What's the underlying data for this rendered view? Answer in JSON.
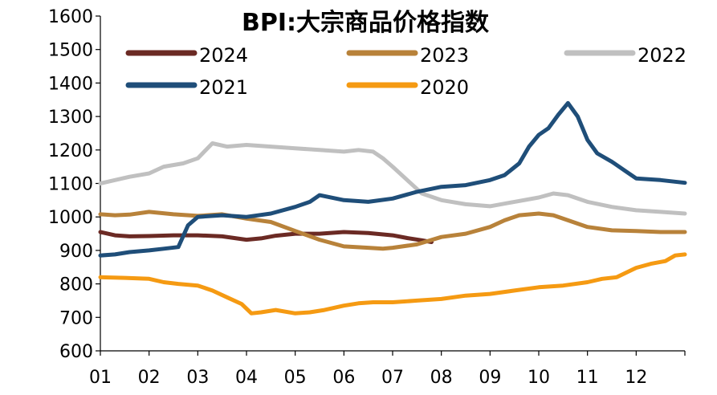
{
  "chart_data": {
    "type": "line",
    "title": "BPI:大宗商品价格指数",
    "xlabel": "",
    "ylabel": "",
    "ylim": [
      600,
      1600
    ],
    "yticks": [
      600,
      700,
      800,
      900,
      1000,
      1100,
      1200,
      1300,
      1400,
      1500,
      1600
    ],
    "xlim": [
      1,
      13
    ],
    "categories": [
      "01",
      "02",
      "03",
      "04",
      "05",
      "06",
      "07",
      "08",
      "09",
      "10",
      "11",
      "12"
    ],
    "grid": false,
    "legend_position": "top",
    "series": [
      {
        "name": "2024",
        "color": "#6b2a24",
        "x": [
          1.0,
          1.3,
          1.6,
          2.0,
          2.5,
          3.0,
          3.5,
          4.0,
          4.3,
          4.6,
          5.0,
          5.5,
          6.0,
          6.5,
          7.0,
          7.3,
          7.6,
          7.8
        ],
        "y": [
          955,
          945,
          942,
          943,
          945,
          945,
          942,
          932,
          936,
          944,
          950,
          950,
          955,
          952,
          945,
          937,
          930,
          925
        ]
      },
      {
        "name": "2023",
        "color": "#b8823a",
        "x": [
          1.0,
          1.3,
          1.6,
          2.0,
          2.5,
          3.0,
          3.5,
          4.0,
          4.5,
          5.0,
          5.5,
          6.0,
          6.5,
          6.8,
          7.0,
          7.5,
          8.0,
          8.5,
          9.0,
          9.3,
          9.6,
          10.0,
          10.3,
          10.6,
          11.0,
          11.5,
          12.0,
          12.5,
          13.0
        ],
        "y": [
          1008,
          1005,
          1007,
          1015,
          1008,
          1003,
          1008,
          995,
          985,
          958,
          932,
          912,
          908,
          905,
          908,
          918,
          940,
          950,
          970,
          990,
          1005,
          1010,
          1005,
          990,
          970,
          960,
          958,
          955,
          955
        ]
      },
      {
        "name": "2022",
        "color": "#c0c0c0",
        "x": [
          1.0,
          1.3,
          1.6,
          2.0,
          2.3,
          2.7,
          3.0,
          3.3,
          3.6,
          4.0,
          4.5,
          5.0,
          5.5,
          6.0,
          6.3,
          6.6,
          6.8,
          7.0,
          7.3,
          7.6,
          8.0,
          8.5,
          9.0,
          9.5,
          10.0,
          10.3,
          10.6,
          11.0,
          11.5,
          12.0,
          12.5,
          13.0
        ],
        "y": [
          1100,
          1110,
          1120,
          1130,
          1150,
          1160,
          1175,
          1220,
          1210,
          1215,
          1210,
          1205,
          1200,
          1195,
          1200,
          1195,
          1175,
          1150,
          1110,
          1070,
          1050,
          1038,
          1032,
          1045,
          1058,
          1070,
          1065,
          1045,
          1030,
          1020,
          1015,
          1010
        ]
      },
      {
        "name": "2021",
        "color": "#1f4e79",
        "x": [
          1.0,
          1.3,
          1.6,
          2.0,
          2.3,
          2.6,
          2.8,
          3.0,
          3.5,
          4.0,
          4.5,
          5.0,
          5.3,
          5.5,
          6.0,
          6.5,
          7.0,
          7.5,
          8.0,
          8.5,
          9.0,
          9.3,
          9.6,
          9.8,
          10.0,
          10.2,
          10.4,
          10.6,
          10.8,
          11.0,
          11.2,
          11.5,
          11.8,
          12.0,
          12.5,
          13.0
        ],
        "y": [
          885,
          888,
          895,
          900,
          905,
          910,
          975,
          1000,
          1005,
          1000,
          1010,
          1030,
          1045,
          1065,
          1050,
          1045,
          1055,
          1075,
          1090,
          1095,
          1110,
          1125,
          1160,
          1210,
          1245,
          1265,
          1305,
          1340,
          1300,
          1230,
          1190,
          1165,
          1135,
          1115,
          1110,
          1102
        ]
      },
      {
        "name": "2020",
        "color": "#f59a12",
        "x": [
          1.0,
          1.5,
          2.0,
          2.3,
          2.6,
          3.0,
          3.3,
          3.6,
          3.9,
          4.1,
          4.3,
          4.6,
          5.0,
          5.3,
          5.6,
          6.0,
          6.3,
          6.6,
          7.0,
          7.5,
          8.0,
          8.5,
          9.0,
          9.5,
          10.0,
          10.5,
          11.0,
          11.3,
          11.6,
          12.0,
          12.3,
          12.6,
          12.8,
          13.0
        ],
        "y": [
          820,
          818,
          815,
          805,
          800,
          795,
          780,
          760,
          740,
          712,
          715,
          722,
          712,
          715,
          722,
          735,
          742,
          745,
          745,
          750,
          755,
          765,
          770,
          780,
          790,
          795,
          805,
          815,
          820,
          848,
          860,
          868,
          885,
          888
        ]
      }
    ]
  }
}
